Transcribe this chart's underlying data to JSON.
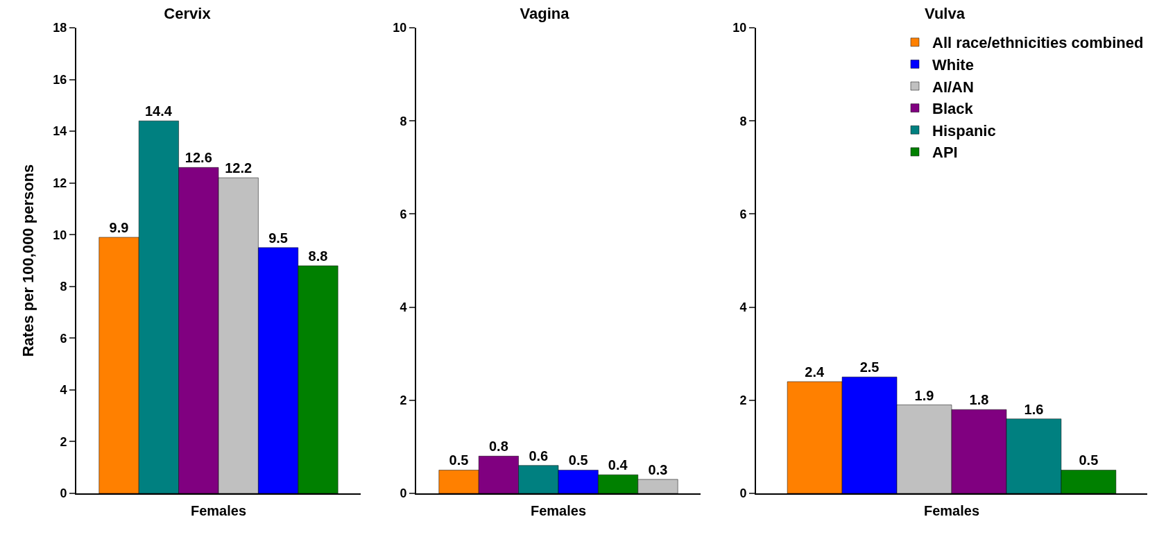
{
  "chart_data": [
    {
      "type": "bar",
      "title": "Cervix",
      "ylabel": "Rates per 100,000 persons",
      "categories": [
        "Females"
      ],
      "ylim": [
        0,
        18
      ],
      "yticks": [
        0,
        2,
        4,
        6,
        8,
        10,
        12,
        14,
        16,
        18
      ],
      "grid": false,
      "legend": false,
      "data_labels": true,
      "series": [
        {
          "color": "#ff8000",
          "values": [
            9.9
          ]
        },
        {
          "color": "#008080",
          "values": [
            14.4
          ]
        },
        {
          "color": "#800080",
          "values": [
            12.6
          ]
        },
        {
          "color": "#c0c0c0",
          "values": [
            12.2
          ]
        },
        {
          "color": "#0000ff",
          "values": [
            9.5
          ]
        },
        {
          "color": "#008000",
          "values": [
            8.8
          ]
        }
      ]
    },
    {
      "type": "bar",
      "title": "Vagina",
      "categories": [
        "Females"
      ],
      "ylim": [
        0,
        10
      ],
      "yticks": [
        0,
        2,
        4,
        6,
        8,
        10
      ],
      "grid": false,
      "legend": false,
      "data_labels": true,
      "series": [
        {
          "color": "#ff8000",
          "values": [
            0.5
          ]
        },
        {
          "color": "#800080",
          "values": [
            0.8
          ]
        },
        {
          "color": "#008080",
          "values": [
            0.6
          ]
        },
        {
          "color": "#0000ff",
          "values": [
            0.5
          ]
        },
        {
          "color": "#008000",
          "values": [
            0.4
          ]
        },
        {
          "color": "#c0c0c0",
          "values": [
            0.3
          ]
        }
      ]
    },
    {
      "type": "bar",
      "title": "Vulva",
      "categories": [
        "Females"
      ],
      "ylim": [
        0,
        10
      ],
      "yticks": [
        0,
        2,
        4,
        6,
        8,
        10
      ],
      "grid": false,
      "legend": "top right",
      "data_labels": true,
      "series": [
        {
          "name": "All race/ethnicities combined",
          "color": "#ff8000",
          "values": [
            2.4
          ]
        },
        {
          "name": "White",
          "color": "#0000ff",
          "values": [
            2.5
          ]
        },
        {
          "name": "AI/AN",
          "color": "#c0c0c0",
          "values": [
            1.9
          ]
        },
        {
          "name": "Black",
          "color": "#800080",
          "values": [
            1.8
          ]
        },
        {
          "name": "Hispanic",
          "color": "#008080",
          "values": [
            1.6
          ]
        },
        {
          "name": "API",
          "color": "#008000",
          "values": [
            0.5
          ]
        }
      ]
    }
  ]
}
